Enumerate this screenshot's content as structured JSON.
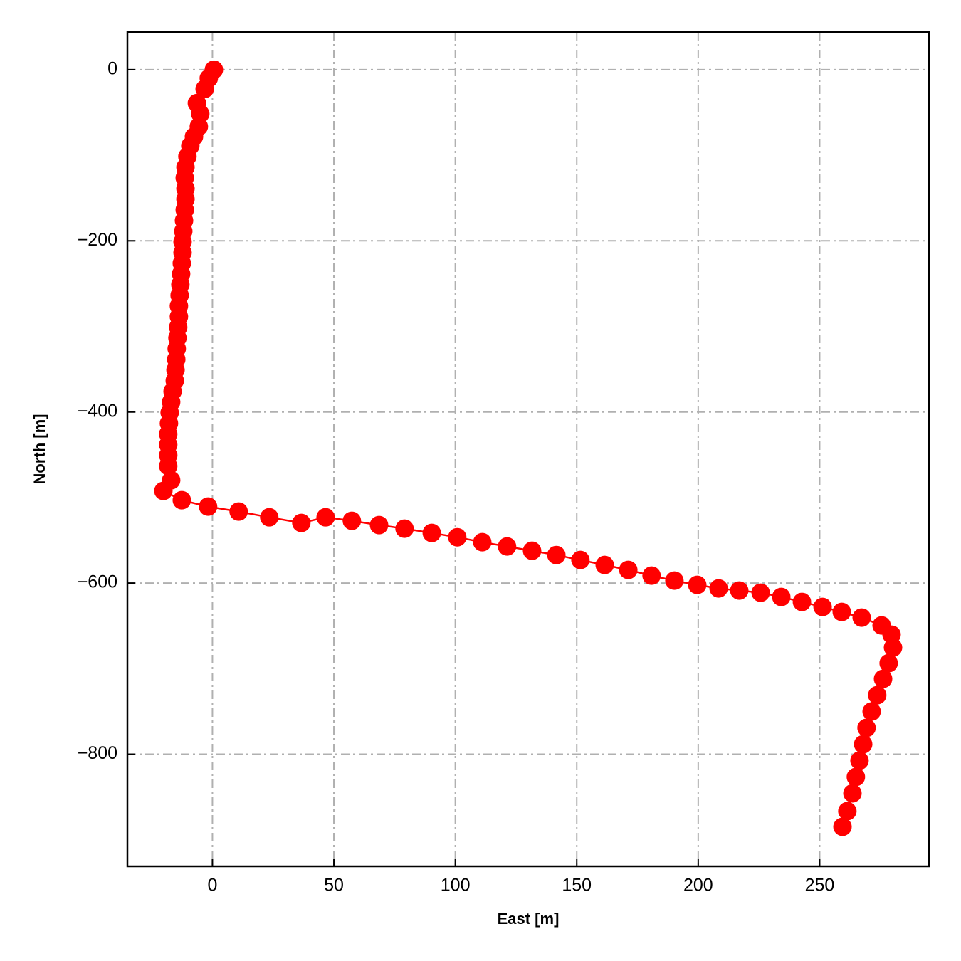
{
  "chart_data": {
    "type": "line",
    "x_label": "East [m]",
    "y_label": "North [m]",
    "color": "#ff0000",
    "grid": true,
    "xlim": [
      -35,
      295
    ],
    "ylim": [
      -931,
      44
    ],
    "xticks": [
      0,
      50,
      100,
      150,
      200,
      250
    ],
    "yticks": [
      {
        "value": 0,
        "label": "0"
      },
      {
        "value": -200,
        "label": "−200"
      },
      {
        "value": -400,
        "label": "−400"
      },
      {
        "value": -600,
        "label": "−600"
      },
      {
        "value": -800,
        "label": "−800"
      }
    ],
    "x": [
      0.6,
      -1.5,
      -3.2,
      -6.4,
      -5.0,
      -5.6,
      -7.6,
      -9.1,
      -10.3,
      -11.1,
      -11.4,
      -11.1,
      -11.1,
      -11.4,
      -11.7,
      -12.0,
      -12.3,
      -12.3,
      -12.6,
      -12.9,
      -13.2,
      -13.5,
      -13.8,
      -13.8,
      -14.1,
      -14.4,
      -14.7,
      -14.9,
      -15.2,
      -15.5,
      -16.4,
      -17.0,
      -17.6,
      -17.9,
      -18.2,
      -18.2,
      -18.2,
      -18.2,
      -17.0,
      -20.2,
      -12.6,
      -1.8,
      10.8,
      23.4,
      36.6,
      46.6,
      57.4,
      68.6,
      79.1,
      90.3,
      100.8,
      111.1,
      121.3,
      131.6,
      141.6,
      151.5,
      161.5,
      171.2,
      180.8,
      190.2,
      199.6,
      208.4,
      216.9,
      225.7,
      234.2,
      242.7,
      251.2,
      259.1,
      267.3,
      275.5,
      279.6,
      280.2,
      278.4,
      276.1,
      273.7,
      271.4,
      269.3,
      267.9,
      266.4,
      264.9,
      263.5,
      261.4,
      259.4
    ],
    "values": [
      0,
      -10.0,
      -22.5,
      -39.1,
      -51.6,
      -66.5,
      -78.2,
      -89.0,
      -101.5,
      -114.0,
      -126.4,
      -138.9,
      -151.4,
      -163.8,
      -176.3,
      -188.8,
      -201.2,
      -213.7,
      -226.2,
      -238.7,
      -251.1,
      -263.6,
      -276.1,
      -288.6,
      -301.0,
      -313.5,
      -326.0,
      -338.5,
      -350.9,
      -363.4,
      -375.9,
      -388.4,
      -400.8,
      -413.3,
      -425.8,
      -438.3,
      -450.7,
      -463.2,
      -479.8,
      -492.3,
      -503.1,
      -510.6,
      -516.4,
      -523.1,
      -529.7,
      -523.1,
      -527.2,
      -532.2,
      -536.4,
      -541.4,
      -546.4,
      -552.2,
      -557.2,
      -562.2,
      -567.2,
      -573.0,
      -578.8,
      -584.6,
      -591.3,
      -597.1,
      -602.1,
      -606.2,
      -608.7,
      -611.2,
      -616.2,
      -622.0,
      -627.9,
      -633.7,
      -640.3,
      -649.5,
      -660.3,
      -675.3,
      -693.6,
      -711.9,
      -731.0,
      -750.1,
      -769.2,
      -788.4,
      -807.5,
      -826.6,
      -845.7,
      -866.5,
      -884.8
    ]
  }
}
